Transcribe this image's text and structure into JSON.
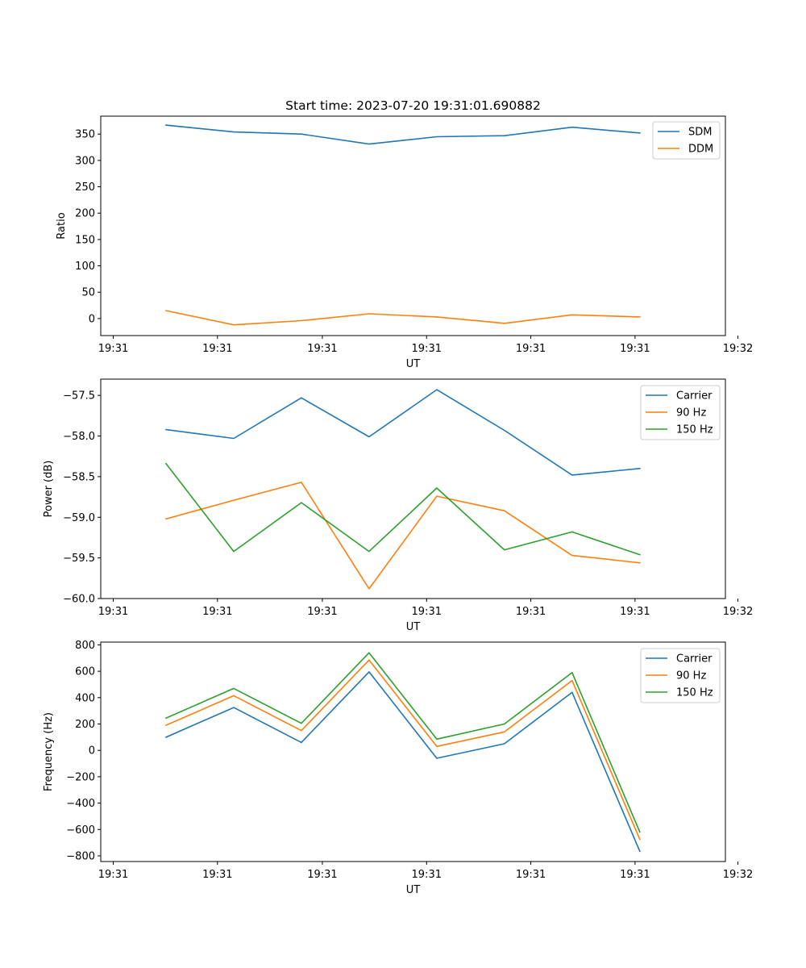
{
  "title": "Start time: 2023-07-20 19:31:01.690882",
  "colors": {
    "blue": "#1f77b4",
    "orange": "#ff7f0e",
    "green": "#2ca02c"
  },
  "chart_data": [
    {
      "type": "line",
      "xlabel": "UT",
      "ylabel": "Ratio",
      "x": [
        1,
        2,
        3,
        4,
        5,
        6,
        7,
        8
      ],
      "xlim": [
        0.22,
        9.45
      ],
      "x_ticks": [
        0.22,
        1.76,
        3.31,
        4.85,
        6.39,
        7.93,
        9.45
      ],
      "x_tick_labels": [
        "19:31",
        "19:31",
        "19:31",
        "19:31",
        "19:31",
        "19:31",
        "19:32"
      ],
      "ylim": [
        -32.3,
        384
      ],
      "y_ticks": [
        0,
        50,
        100,
        150,
        200,
        250,
        300,
        350
      ],
      "y_tick_labels": [
        "0",
        "50",
        "100",
        "150",
        "200",
        "250",
        "300",
        "350"
      ],
      "legend": "top-right",
      "series": [
        {
          "name": "SDM",
          "color": "#1f77b4",
          "values": [
            367,
            354,
            350,
            331,
            345,
            347,
            363,
            352
          ]
        },
        {
          "name": "DDM",
          "color": "#ff7f0e",
          "values": [
            15,
            -12,
            -4,
            9,
            3,
            -9,
            7,
            3
          ]
        }
      ]
    },
    {
      "type": "line",
      "xlabel": "UT",
      "ylabel": "Power (dB)",
      "x": [
        1,
        2,
        3,
        4,
        5,
        6,
        7,
        8
      ],
      "xlim": [
        0.22,
        9.45
      ],
      "x_ticks": [
        0.22,
        1.76,
        3.31,
        4.85,
        6.39,
        7.93,
        9.45
      ],
      "x_tick_labels": [
        "19:31",
        "19:31",
        "19:31",
        "19:31",
        "19:31",
        "19:31",
        "19:32"
      ],
      "ylim": [
        -60.0,
        -57.3
      ],
      "y_ticks": [
        -60.0,
        -59.5,
        -59.0,
        -58.5,
        -58.0,
        -57.5
      ],
      "y_tick_labels": [
        "−60.0",
        "−59.5",
        "−59.0",
        "−58.5",
        "−58.0",
        "−57.5"
      ],
      "legend": "top-right",
      "series": [
        {
          "name": "Carrier",
          "color": "#1f77b4",
          "values": [
            -57.92,
            -58.03,
            -57.53,
            -58.01,
            -57.43,
            -57.93,
            -58.48,
            -58.4
          ]
        },
        {
          "name": "90 Hz",
          "color": "#ff7f0e",
          "values": [
            -59.02,
            -58.79,
            -58.57,
            -59.88,
            -58.74,
            -58.92,
            -59.47,
            -59.56
          ]
        },
        {
          "name": "150 Hz",
          "color": "#2ca02c",
          "values": [
            -58.34,
            -59.42,
            -58.82,
            -59.42,
            -58.64,
            -59.4,
            -59.18,
            -59.46
          ]
        }
      ]
    },
    {
      "type": "line",
      "xlabel": "UT",
      "ylabel": "Frequency (Hz)",
      "x": [
        1,
        2,
        3,
        4,
        5,
        6,
        7,
        8
      ],
      "xlim": [
        0.22,
        9.45
      ],
      "x_ticks": [
        0.22,
        1.76,
        3.31,
        4.85,
        6.39,
        7.93,
        9.45
      ],
      "x_tick_labels": [
        "19:31",
        "19:31",
        "19:31",
        "19:31",
        "19:31",
        "19:31",
        "19:32"
      ],
      "ylim": [
        -843,
        821
      ],
      "y_ticks": [
        -800,
        -600,
        -400,
        -200,
        0,
        200,
        400,
        600,
        800
      ],
      "y_tick_labels": [
        "−800",
        "−600",
        "−400",
        "−200",
        "0",
        "200",
        "400",
        "600",
        "800"
      ],
      "legend": "top-right",
      "series": [
        {
          "name": "Carrier",
          "color": "#1f77b4",
          "values": [
            100,
            325,
            60,
            595,
            -60,
            50,
            440,
            -765
          ]
        },
        {
          "name": "90 Hz",
          "color": "#ff7f0e",
          "values": [
            190,
            415,
            150,
            685,
            30,
            140,
            530,
            -675
          ]
        },
        {
          "name": "150 Hz",
          "color": "#2ca02c",
          "values": [
            245,
            470,
            205,
            740,
            85,
            200,
            590,
            -620
          ]
        }
      ]
    }
  ]
}
